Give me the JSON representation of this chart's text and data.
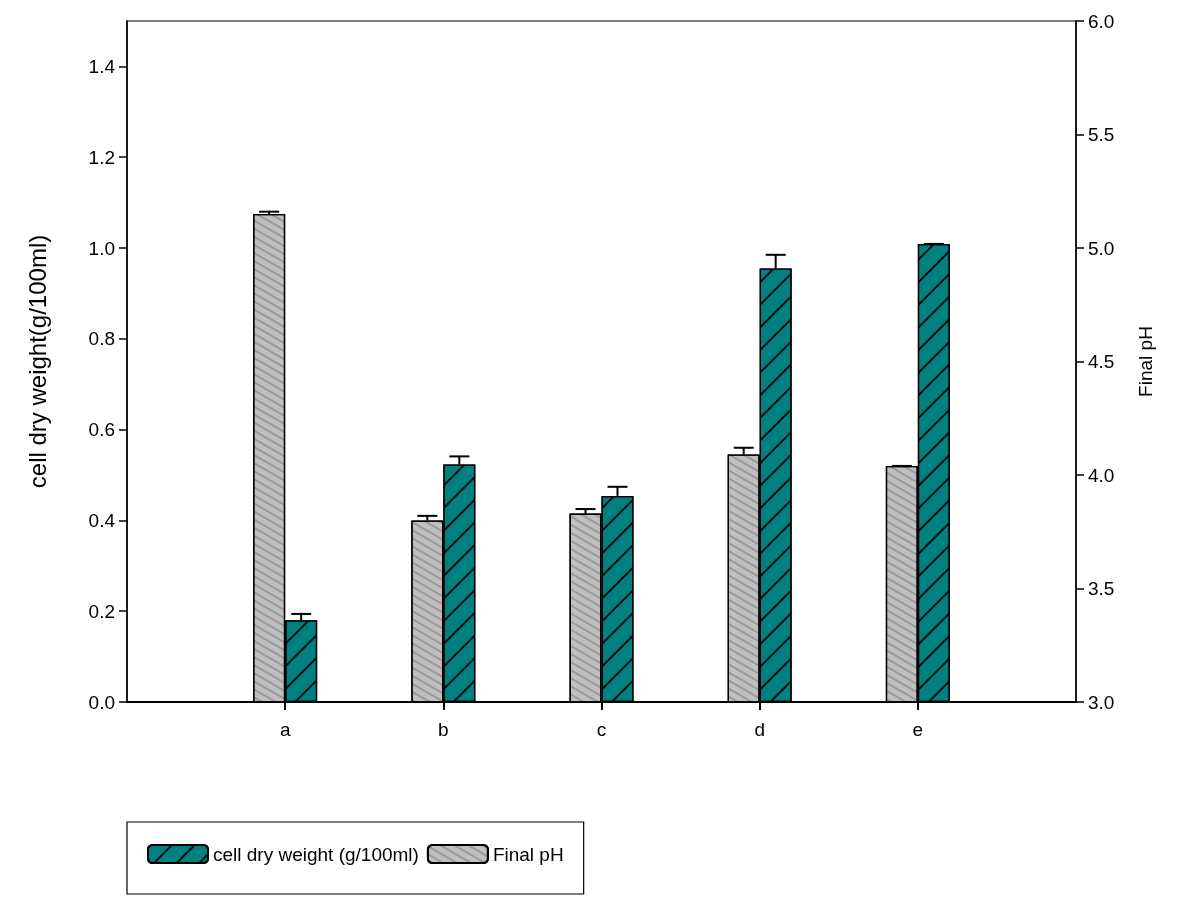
{
  "chart_data": {
    "type": "bar",
    "categories": [
      "a",
      "b",
      "c",
      "d",
      "e"
    ],
    "ylabel": "cell dry weight(g/100ml)",
    "y2label": "Final pH",
    "series": [
      {
        "name": "Final pH",
        "color": "#c0c0c0",
        "axis": "y2",
        "values": [
          5.15,
          3.8,
          3.83,
          4.09,
          4.04
        ],
        "errors": [
          0.01,
          0.02,
          0.02,
          0.03,
          0
        ]
      },
      {
        "name": "cell dry weight (g/100ml)",
        "color": "#008080",
        "values": [
          0.18,
          0.523,
          0.454,
          0.955,
          1.009
        ],
        "errors": [
          0.014,
          0.018,
          0.02,
          0.03,
          0
        ]
      }
    ],
    "ylim": [
      0,
      1.5
    ],
    "yticks": [
      {
        "value": 0,
        "label": "0.0"
      },
      {
        "value": 0.2,
        "label": "0.2"
      },
      {
        "value": 0.4,
        "label": "0.4"
      },
      {
        "value": 0.6,
        "label": "0.6"
      },
      {
        "value": 0.8,
        "label": "0.8"
      },
      {
        "value": 1,
        "label": "1.0"
      },
      {
        "value": 1.2,
        "label": "1.2"
      },
      {
        "value": 1.4,
        "label": "1.4"
      }
    ],
    "y2lim": [
      3,
      6
    ],
    "y2ticks": [
      {
        "value": 3,
        "label": "3.0"
      },
      {
        "value": 3.5,
        "label": "3.5"
      },
      {
        "value": 4,
        "label": "4.0"
      },
      {
        "value": 4.5,
        "label": "4.5"
      },
      {
        "value": 5,
        "label": "5.0"
      },
      {
        "value": 5.5,
        "label": "5.5"
      },
      {
        "value": 6,
        "label": "6.0"
      }
    ],
    "grid": false,
    "legend": "bottom left"
  }
}
